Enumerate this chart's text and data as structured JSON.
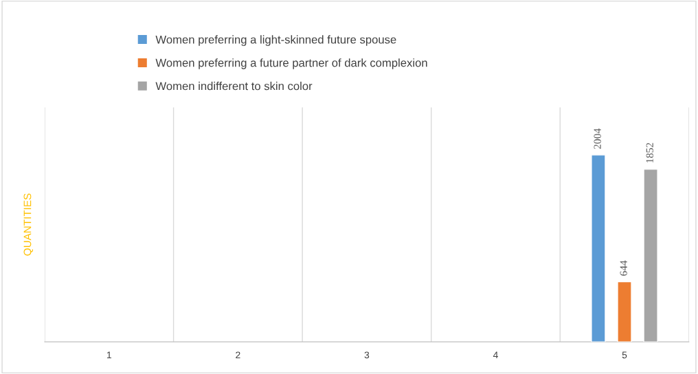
{
  "chart_data": {
    "type": "bar",
    "ylabel": "QUANTITIES",
    "categories": [
      "1",
      "2",
      "3",
      "4",
      "5"
    ],
    "series": [
      {
        "name": "Women preferring a light-skinned future spouse",
        "color": "#5b9bd5",
        "values": [
          null,
          null,
          null,
          null,
          2004
        ]
      },
      {
        "name": "Women preferring a future partner of dark complexion",
        "color": "#ed7d31",
        "values": [
          null,
          null,
          null,
          null,
          644
        ]
      },
      {
        "name": "Women indifferent to skin color",
        "color": "#a5a5a5",
        "values": [
          null,
          null,
          null,
          null,
          1852
        ]
      }
    ],
    "data_labels": true,
    "grid": "x",
    "legend": "top"
  }
}
